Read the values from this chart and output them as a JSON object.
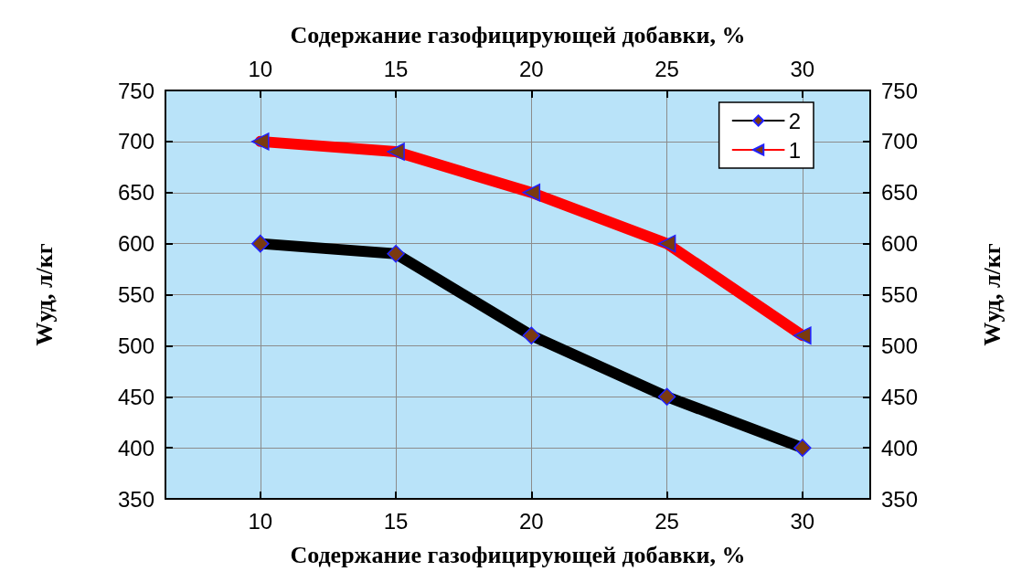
{
  "chart_data": {
    "type": "line",
    "xlabel": "Содержание газофицирующей добавки, %",
    "x2label": "Содержание газофицирующей добавки, %",
    "ylabel": "Wуд, л/кг",
    "y2label": "Wуд, л/кг",
    "x": [
      10,
      15,
      20,
      25,
      30
    ],
    "series": [
      {
        "name": "2",
        "color": "#000000",
        "marker": "diamond",
        "values": [
          600,
          590,
          510,
          450,
          400
        ]
      },
      {
        "name": "1",
        "color": "#ff0000",
        "marker": "triangle",
        "values": [
          700,
          690,
          650,
          600,
          510
        ]
      }
    ],
    "xlim": [
      6.5,
      32.5
    ],
    "xticks": [
      10,
      15,
      20,
      25,
      30
    ],
    "x2lim": [
      6.5,
      32.5
    ],
    "x2ticks": [
      10,
      15,
      20,
      25,
      30
    ],
    "ylim": [
      350,
      750
    ],
    "yticks": [
      350,
      400,
      450,
      500,
      550,
      600,
      650,
      700,
      750
    ],
    "y2lim": [
      350,
      750
    ],
    "y2ticks": [
      350,
      400,
      450,
      500,
      550,
      600,
      650,
      700,
      750
    ],
    "grid": true,
    "legend": "top right",
    "line_style": "solid"
  }
}
